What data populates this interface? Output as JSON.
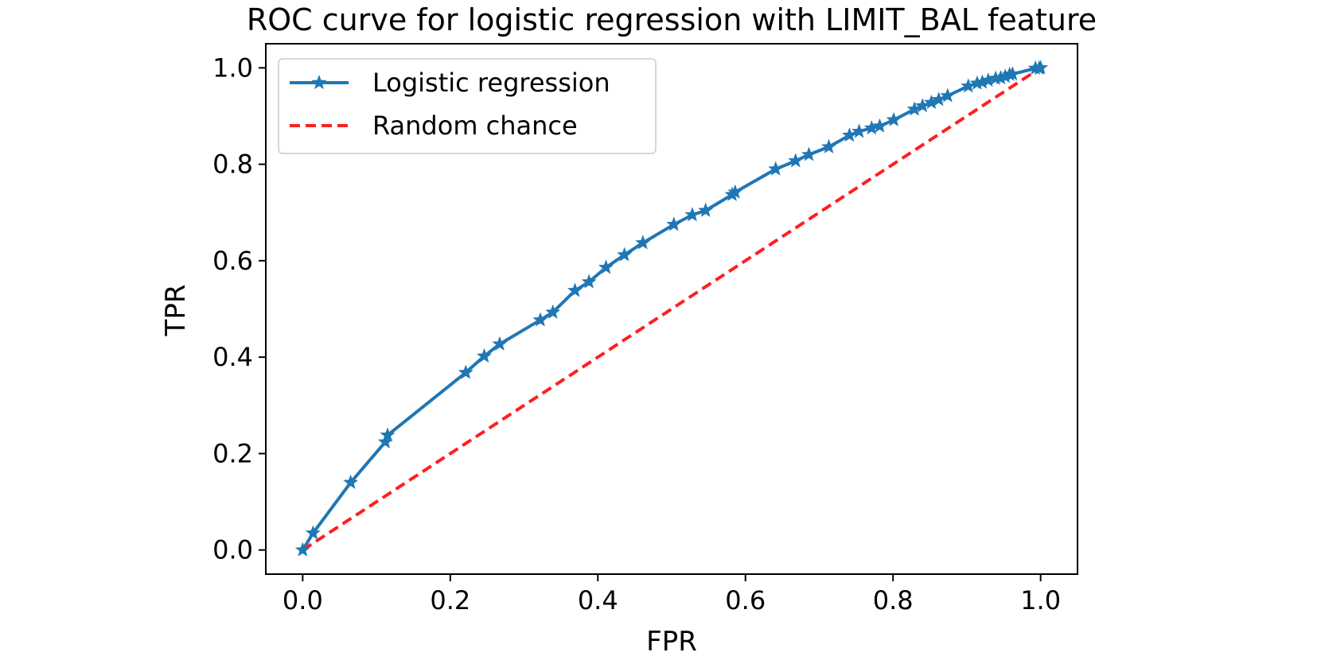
{
  "chart_data": {
    "type": "line",
    "title": "ROC curve for logistic regression with LIMIT_BAL feature",
    "xlabel": "FPR",
    "ylabel": "TPR",
    "xlim": [
      -0.05,
      1.05
    ],
    "ylim": [
      -0.05,
      1.05
    ],
    "xticks": [
      "0.0",
      "0.2",
      "0.4",
      "0.6",
      "0.8",
      "1.0"
    ],
    "yticks": [
      "0.0",
      "0.2",
      "0.4",
      "0.6",
      "0.8",
      "1.0"
    ],
    "xtick_values": [
      0.0,
      0.2,
      0.4,
      0.6,
      0.8,
      1.0
    ],
    "ytick_values": [
      0.0,
      0.2,
      0.4,
      0.6,
      0.8,
      1.0
    ],
    "grid": false,
    "legend_position": "top-left",
    "series": [
      {
        "name": "Logistic regression",
        "color": "#1f77b4",
        "style": "solid",
        "marker": "star",
        "x": [
          0.0,
          0.014,
          0.065,
          0.112,
          0.115,
          0.221,
          0.246,
          0.267,
          0.322,
          0.339,
          0.369,
          0.388,
          0.411,
          0.436,
          0.461,
          0.503,
          0.528,
          0.546,
          0.582,
          0.586,
          0.641,
          0.668,
          0.686,
          0.713,
          0.741,
          0.754,
          0.771,
          0.782,
          0.801,
          0.829,
          0.84,
          0.852,
          0.862,
          0.874,
          0.902,
          0.914,
          0.921,
          0.929,
          0.939,
          0.946,
          0.952,
          0.958,
          0.962,
          0.993,
          0.998,
          1.0
        ],
        "y": [
          0.0,
          0.035,
          0.14,
          0.224,
          0.238,
          0.368,
          0.402,
          0.427,
          0.477,
          0.493,
          0.538,
          0.556,
          0.586,
          0.612,
          0.637,
          0.675,
          0.695,
          0.704,
          0.737,
          0.742,
          0.79,
          0.807,
          0.82,
          0.836,
          0.86,
          0.868,
          0.875,
          0.879,
          0.892,
          0.914,
          0.921,
          0.928,
          0.934,
          0.942,
          0.962,
          0.968,
          0.97,
          0.974,
          0.978,
          0.979,
          0.982,
          0.986,
          0.987,
          0.999,
          0.999,
          1.0
        ]
      },
      {
        "name": "Random chance",
        "color": "#ff1f1f",
        "style": "dashed",
        "marker": "none",
        "x": [
          0.0,
          1.0
        ],
        "y": [
          0.0,
          1.0
        ]
      }
    ]
  }
}
